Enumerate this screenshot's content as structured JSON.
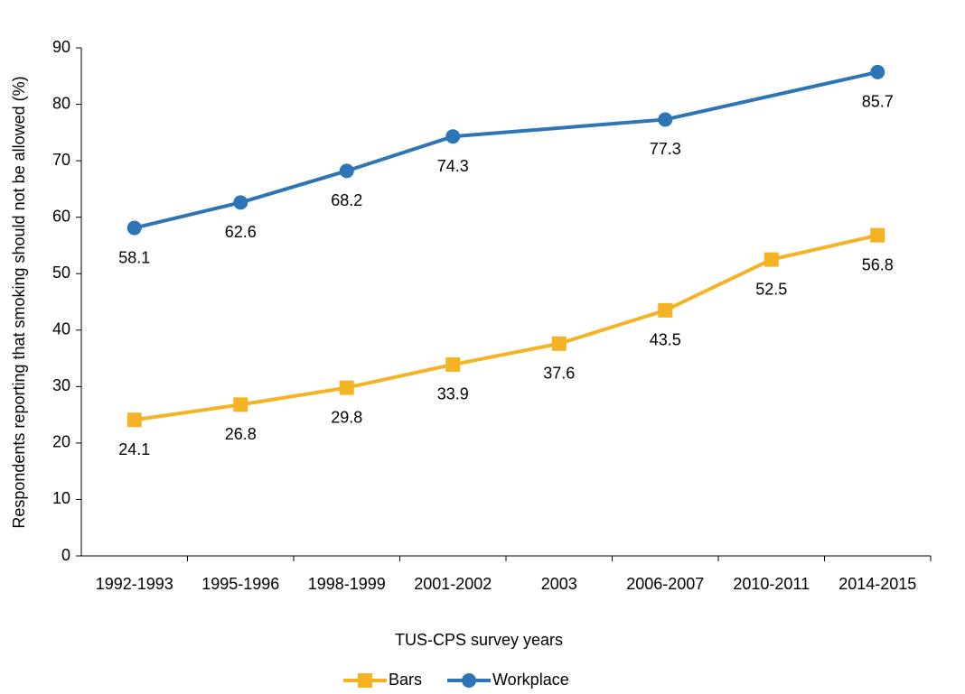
{
  "chart_data": {
    "type": "line",
    "x_label": "TUS-CPS survey years",
    "y_label": "Respondents reporting that smoking should not be allowed (%)",
    "categories": [
      "1992-1993",
      "1995-1996",
      "1998-1999",
      "2001-2002",
      "2003",
      "2006-2007",
      "2010-2011",
      "2014-2015"
    ],
    "series": [
      {
        "name": "Bars",
        "color": "#f5b324",
        "marker": "square",
        "values": [
          24.1,
          26.8,
          29.8,
          33.9,
          37.6,
          43.5,
          52.5,
          56.8
        ]
      },
      {
        "name": "Workplace",
        "color": "#2e75b6",
        "marker": "circle",
        "values": [
          58.1,
          62.6,
          68.2,
          74.3,
          null,
          77.3,
          null,
          85.7
        ]
      }
    ],
    "ylim": [
      0,
      90
    ],
    "yticks": [
      0,
      10,
      20,
      30,
      40,
      50,
      60,
      70,
      80,
      90
    ],
    "grid": false,
    "legend": "bottom"
  }
}
